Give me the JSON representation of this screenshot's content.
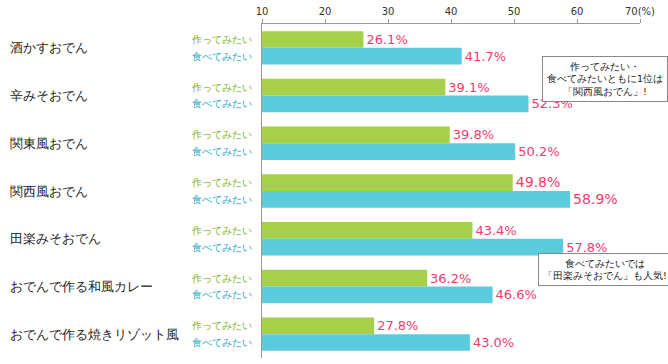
{
  "chart_data": {
    "type": "bar",
    "orientation": "horizontal",
    "categories": [
      "酒かすおでん",
      "辛みそおでん",
      "関東風おでん",
      "関西風おでん",
      "田楽みそおでん",
      "おでんで作る和風カレー",
      "おでんで作る焼きリゾット風"
    ],
    "series": [
      {
        "name": "作ってみたい",
        "color": "#a6d04a",
        "values": [
          26.1,
          39.1,
          39.8,
          49.8,
          43.4,
          36.2,
          27.8
        ],
        "value_labels": [
          "26.1%",
          "39.1%",
          "39.8%",
          "49.8%",
          "43.4%",
          "36.2%",
          "27.8%"
        ]
      },
      {
        "name": "食べてみたい",
        "color": "#5ccbdc",
        "values": [
          41.7,
          52.3,
          50.2,
          58.9,
          57.8,
          46.6,
          43.0
        ],
        "value_labels": [
          "41.7%",
          "52.3%",
          "50.2%",
          "58.9%",
          "57.8%",
          "46.6%",
          "43.0%"
        ]
      }
    ],
    "xlim": [
      10,
      70
    ],
    "xticks": [
      10,
      20,
      30,
      40,
      50,
      60,
      {
        "value": 70,
        "label": "70(%)"
      }
    ],
    "grid": false,
    "data_labels": true,
    "annotations": [
      {
        "text": [
          "作ってみたい・",
          "食べてみたいともに1位は",
          "「関西風おでん」!"
        ],
        "category": "辛みそおでん"
      },
      {
        "text": [
          "食べてみたいでは",
          "「田楽みそおでん」も人気!"
        ],
        "category": "おでんで作る和風カレー"
      }
    ]
  }
}
